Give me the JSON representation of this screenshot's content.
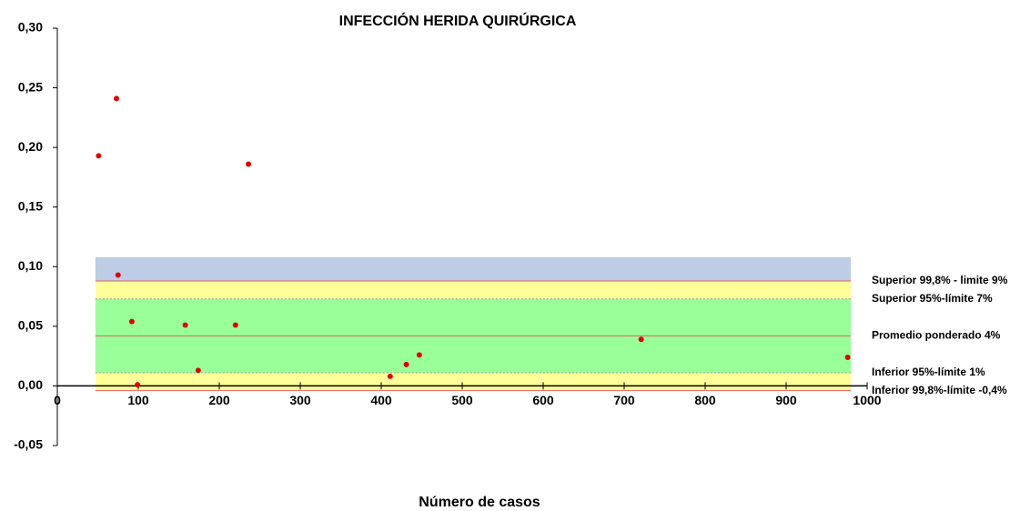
{
  "chart_data": {
    "type": "scatter",
    "title": "INFECCIÓN HERIDA QUIRÚRGICA",
    "x_label": "Número de casos",
    "xlim": [
      0,
      1000
    ],
    "xticks": [
      0,
      100,
      200,
      300,
      400,
      500,
      600,
      700,
      800,
      900,
      1000
    ],
    "ylim": [
      -0.05,
      0.3
    ],
    "yticks": [
      {
        "value": -0.05,
        "label": "-0,05"
      },
      {
        "value": 0,
        "label": "0,00"
      },
      {
        "value": 0.05,
        "label": "0,05"
      },
      {
        "value": 0.1,
        "label": "0,10"
      },
      {
        "value": 0.15,
        "label": "0,15"
      },
      {
        "value": 0.2,
        "label": "0,20"
      },
      {
        "value": 0.25,
        "label": "0,25"
      },
      {
        "value": 0.3,
        "label": "0,30"
      }
    ],
    "series": [
      {
        "color": "#e00000",
        "x": [
          51,
          73,
          75,
          92,
          99,
          158,
          174,
          220,
          236,
          411,
          431,
          447,
          721,
          976
        ],
        "values": [
          0.193,
          0.241,
          0.093,
          0.054,
          0.001,
          0.051,
          0.013,
          0.051,
          0.186,
          0.008,
          0.018,
          0.026,
          0.039,
          0.024
        ]
      }
    ],
    "band_x": [
      47,
      980
    ],
    "band_top": 0.108,
    "band_colors": [
      "#bccde5",
      "#ffff99",
      "#99ff99",
      "#99ff99",
      "#ffff99"
    ],
    "limits": [
      {
        "label": "Superior 99,8% - limite 9%",
        "value": 0.088,
        "color": "#e06060",
        "style": "solid"
      },
      {
        "label": "Superior 95%-límite 7%",
        "value": 0.073,
        "color": "#999999",
        "style": "dotted"
      },
      {
        "label": "Promedio ponderado 4%",
        "value": 0.042,
        "color": "#e06060",
        "style": "solid"
      },
      {
        "label": "Inferior 95%-límite 1%",
        "value": 0.011,
        "color": "#999999",
        "style": "dotted"
      },
      {
        "label": "Inferior 99,8%-límite -0,4%",
        "value": -0.004,
        "color": "#e06060",
        "style": "solid"
      }
    ]
  }
}
